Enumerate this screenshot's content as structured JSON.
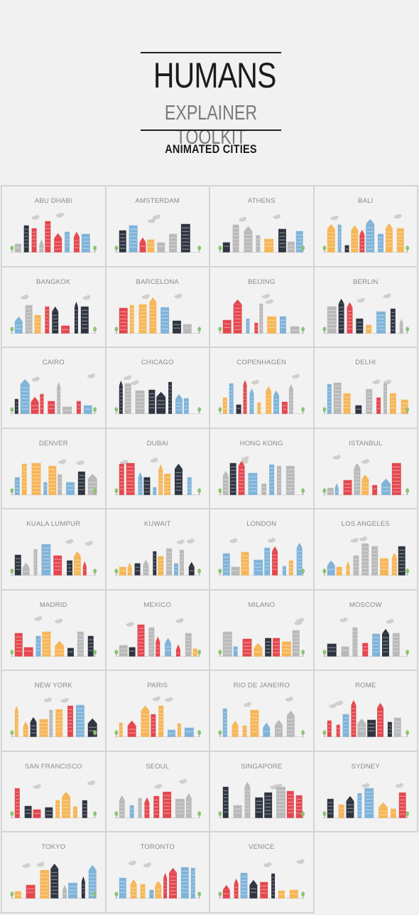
{
  "header": {
    "title": "HUMANS",
    "subtitle": "EXPLAINER TOOLKIT",
    "tagline": "ANIMATED CITIES"
  },
  "colors": {
    "red": "#e4474e",
    "blue": "#7fb3d9",
    "yellow": "#f6b657",
    "dark": "#2e3440",
    "gray": "#b9b9b9",
    "green": "#8bc46d",
    "cloud": "#cfcfcf",
    "background": "#f1f1f1",
    "grid_line": "#d4d4d4"
  },
  "cities": [
    {
      "name": "ABU DHABI",
      "icon": "abu-dhabi-skyline"
    },
    {
      "name": "AMSTERDAM",
      "icon": "amsterdam-skyline"
    },
    {
      "name": "ATHENS",
      "icon": "athens-skyline"
    },
    {
      "name": "BALI",
      "icon": "bali-skyline"
    },
    {
      "name": "BANGKOK",
      "icon": "bangkok-skyline"
    },
    {
      "name": "BARCELONA",
      "icon": "barcelona-skyline"
    },
    {
      "name": "BEIJING",
      "icon": "beijing-skyline"
    },
    {
      "name": "BERLIN",
      "icon": "berlin-skyline"
    },
    {
      "name": "CAIRO",
      "icon": "cairo-skyline"
    },
    {
      "name": "CHICAGO",
      "icon": "chicago-skyline"
    },
    {
      "name": "COPENHAGEN",
      "icon": "copenhagen-skyline"
    },
    {
      "name": "DELHI",
      "icon": "delhi-skyline"
    },
    {
      "name": "DENVER",
      "icon": "denver-skyline"
    },
    {
      "name": "DUBAI",
      "icon": "dubai-skyline"
    },
    {
      "name": "HONG KONG",
      "icon": "hong-kong-skyline"
    },
    {
      "name": "ISTANBUL",
      "icon": "istanbul-skyline"
    },
    {
      "name": "KUALA LUMPUR",
      "icon": "kuala-lumpur-skyline"
    },
    {
      "name": "KUWAIT",
      "icon": "kuwait-skyline"
    },
    {
      "name": "LONDON",
      "icon": "london-skyline"
    },
    {
      "name": "LOS ANGELES",
      "icon": "los-angeles-skyline"
    },
    {
      "name": "MADRID",
      "icon": "madrid-skyline"
    },
    {
      "name": "MEXICO",
      "icon": "mexico-skyline"
    },
    {
      "name": "MILANO",
      "icon": "milano-skyline"
    },
    {
      "name": "MOSCOW",
      "icon": "moscow-skyline"
    },
    {
      "name": "NEW YORK",
      "icon": "new-york-skyline"
    },
    {
      "name": "PARIS",
      "icon": "paris-skyline"
    },
    {
      "name": "RIO DE JANEIRO",
      "icon": "rio-de-janeiro-skyline"
    },
    {
      "name": "ROME",
      "icon": "rome-skyline"
    },
    {
      "name": "SAN FRANCISCO",
      "icon": "san-francisco-skyline"
    },
    {
      "name": "SEOUL",
      "icon": "seoul-skyline"
    },
    {
      "name": "SINGAPORE",
      "icon": "singapore-skyline"
    },
    {
      "name": "SYDNEY",
      "icon": "sydney-skyline"
    },
    {
      "name": "TOKYO",
      "icon": "tokyo-skyline"
    },
    {
      "name": "TORONTO",
      "icon": "toronto-skyline"
    },
    {
      "name": "VENICE",
      "icon": "venice-skyline"
    }
  ]
}
